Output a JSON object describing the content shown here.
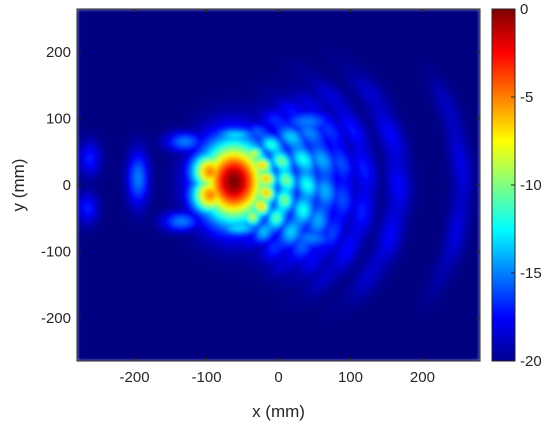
{
  "chart_data": {
    "type": "heatmap",
    "title": "",
    "xlabel": "x (mm)",
    "ylabel": "y (mm)",
    "xlim": [
      -280,
      280
    ],
    "ylim": [
      -265,
      265
    ],
    "xticks": [
      -200,
      -100,
      0,
      100,
      200
    ],
    "yticks": [
      200,
      100,
      0,
      -100,
      -200
    ],
    "colorbar": {
      "colormap": "jet",
      "clim": [
        -20,
        0
      ],
      "ticks": [
        0,
        -5,
        -10,
        -15,
        -20
      ]
    },
    "features": [
      {
        "shape": "blob",
        "x": -62,
        "y": 5,
        "sx": 32,
        "sy": 42,
        "value": 0
      },
      {
        "shape": "blob",
        "x": -95,
        "y": 20,
        "sx": 18,
        "sy": 20,
        "value": -5
      },
      {
        "shape": "blob",
        "x": -95,
        "y": -15,
        "sx": 18,
        "sy": 20,
        "value": -5
      },
      {
        "shape": "arc",
        "x": -85,
        "y": 0,
        "radius": 68,
        "thickness": 11,
        "angle_half_width": 62,
        "value": -6
      },
      {
        "shape": "arc",
        "x": -85,
        "y": 0,
        "radius": 96,
        "thickness": 11,
        "angle_half_width": 55,
        "value": -10
      },
      {
        "shape": "arc",
        "x": -85,
        "y": 0,
        "radius": 125,
        "thickness": 13,
        "angle_half_width": 50,
        "value": -12
      },
      {
        "shape": "arc",
        "x": -85,
        "y": 0,
        "radius": 150,
        "thickness": 14,
        "angle_half_width": 48,
        "value": -14
      },
      {
        "shape": "arc",
        "x": -85,
        "y": 0,
        "radius": 175,
        "thickness": 13,
        "angle_half_width": 45,
        "value": -16
      },
      {
        "shape": "arc",
        "x": -85,
        "y": 0,
        "radius": 205,
        "thickness": 12,
        "angle_half_width": 45,
        "value": -17
      },
      {
        "shape": "arc",
        "x": -85,
        "y": 0,
        "radius": 252,
        "thickness": 12,
        "angle_half_width": 38,
        "value": -17.5
      },
      {
        "shape": "arc",
        "x": -85,
        "y": 0,
        "radius": 340,
        "thickness": 10,
        "angle_half_width": 25,
        "value": -18
      },
      {
        "shape": "blob",
        "x": -195,
        "y": 10,
        "sx": 10,
        "sy": 28,
        "value": -15
      },
      {
        "shape": "blob",
        "x": -262,
        "y": 40,
        "sx": 10,
        "sy": 18,
        "value": -17
      },
      {
        "shape": "blob",
        "x": -265,
        "y": -35,
        "sx": 10,
        "sy": 16,
        "value": -17
      },
      {
        "shape": "blob",
        "x": -130,
        "y": 65,
        "sx": 18,
        "sy": 10,
        "value": -15
      },
      {
        "shape": "blob",
        "x": -135,
        "y": -55,
        "sx": 18,
        "sy": 10,
        "value": -15
      },
      {
        "shape": "blob",
        "x": -60,
        "y": 75,
        "sx": 22,
        "sy": 8,
        "value": -13
      },
      {
        "shape": "blob",
        "x": -55,
        "y": -65,
        "sx": 22,
        "sy": 8,
        "value": -13
      },
      {
        "shape": "blob",
        "x": 40,
        "y": 95,
        "sx": 25,
        "sy": 12,
        "value": -15
      },
      {
        "shape": "blob",
        "x": 45,
        "y": -80,
        "sx": 25,
        "sy": 12,
        "value": -15
      }
    ]
  }
}
